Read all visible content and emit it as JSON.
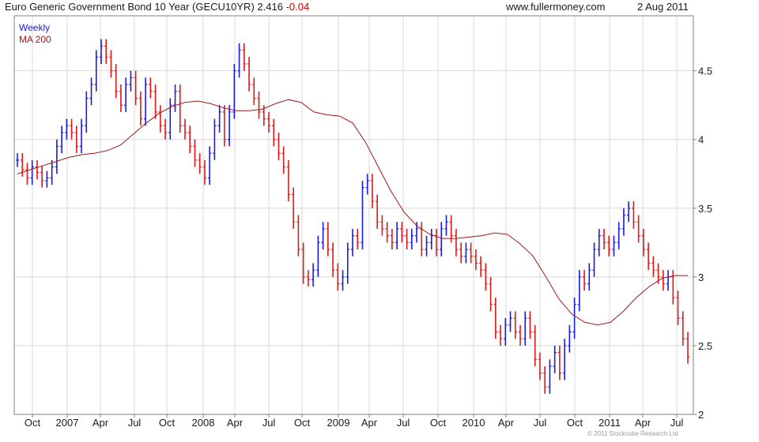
{
  "header": {
    "title": "Euro Generic Government Bond 10 Year (GECU10YR)",
    "last": "2.416",
    "change": "-0.04",
    "website": "www.fullermoney.com",
    "date": "2 Aug 2011"
  },
  "copyright": "© 2011 Stockcube Research Ltd",
  "colors": {
    "up": "#1a1ae6",
    "down": "#e01818",
    "ma": "#a01818",
    "grid": "#d9d9d9",
    "frame": "#808080"
  },
  "chart_data": {
    "type": "line",
    "ylim": [
      2.0,
      4.9
    ],
    "y_ticks": [
      "2",
      "2.5",
      "3",
      "3.5",
      "4",
      "4.5"
    ],
    "x_ticks": [
      "Oct",
      "2007",
      "Apr",
      "Jul",
      "Oct",
      "2008",
      "Apr",
      "Jul",
      "Oct",
      "2009",
      "Apr",
      "Jul",
      "Oct",
      "2010",
      "Apr",
      "Jul",
      "Oct",
      "2011",
      "Apr",
      "Jul"
    ],
    "legend": [
      "Weekly",
      "MA 200"
    ],
    "grid": true,
    "legend_position": "top-left",
    "series": [
      {
        "name": "Weekly",
        "style": "ohlc-bars",
        "values": [
          3.85,
          3.78,
          3.72,
          3.8,
          3.76,
          3.7,
          3.72,
          3.8,
          3.95,
          4.05,
          4.1,
          4.05,
          3.95,
          4.1,
          4.3,
          4.4,
          4.6,
          4.68,
          4.6,
          4.5,
          4.35,
          4.25,
          4.4,
          4.45,
          4.3,
          4.15,
          4.4,
          4.35,
          4.2,
          4.1,
          4.05,
          4.25,
          4.35,
          4.1,
          4.05,
          3.95,
          3.85,
          3.8,
          3.72,
          3.9,
          4.1,
          4.2,
          4.0,
          4.2,
          4.5,
          4.65,
          4.55,
          4.4,
          4.3,
          4.2,
          4.15,
          4.1,
          4.0,
          3.9,
          3.8,
          3.6,
          3.4,
          3.2,
          3.0,
          2.98,
          3.05,
          3.25,
          3.35,
          3.2,
          3.05,
          2.95,
          3.0,
          3.2,
          3.3,
          3.25,
          3.65,
          3.7,
          3.55,
          3.4,
          3.35,
          3.3,
          3.25,
          3.35,
          3.3,
          3.25,
          3.3,
          3.35,
          3.2,
          3.25,
          3.3,
          3.2,
          3.35,
          3.4,
          3.3,
          3.2,
          3.15,
          3.2,
          3.15,
          3.1,
          3.05,
          2.95,
          2.8,
          2.6,
          2.55,
          2.65,
          2.7,
          2.6,
          2.55,
          2.7,
          2.6,
          2.4,
          2.3,
          2.2,
          2.35,
          2.45,
          2.3,
          2.5,
          2.6,
          2.8,
          3.0,
          2.95,
          3.05,
          3.2,
          3.3,
          3.25,
          3.2,
          3.25,
          3.35,
          3.45,
          3.5,
          3.4,
          3.3,
          3.2,
          3.1,
          3.05,
          3.0,
          2.95,
          3.0,
          2.85,
          2.7,
          2.55,
          2.42
        ]
      },
      {
        "name": "MA 200",
        "style": "line",
        "values": [
          3.75,
          3.78,
          3.81,
          3.84,
          3.87,
          3.89,
          3.9,
          3.92,
          3.96,
          4.04,
          4.12,
          4.19,
          4.24,
          4.27,
          4.28,
          4.26,
          4.23,
          4.21,
          4.21,
          4.22,
          4.26,
          4.29,
          4.27,
          4.2,
          4.18,
          4.17,
          4.12,
          3.98,
          3.8,
          3.62,
          3.47,
          3.37,
          3.31,
          3.28,
          3.28,
          3.29,
          3.3,
          3.32,
          3.31,
          3.24,
          3.15,
          3.0,
          2.84,
          2.73,
          2.67,
          2.65,
          2.67,
          2.75,
          2.85,
          2.93,
          2.99,
          3.01,
          3.01
        ]
      }
    ]
  }
}
